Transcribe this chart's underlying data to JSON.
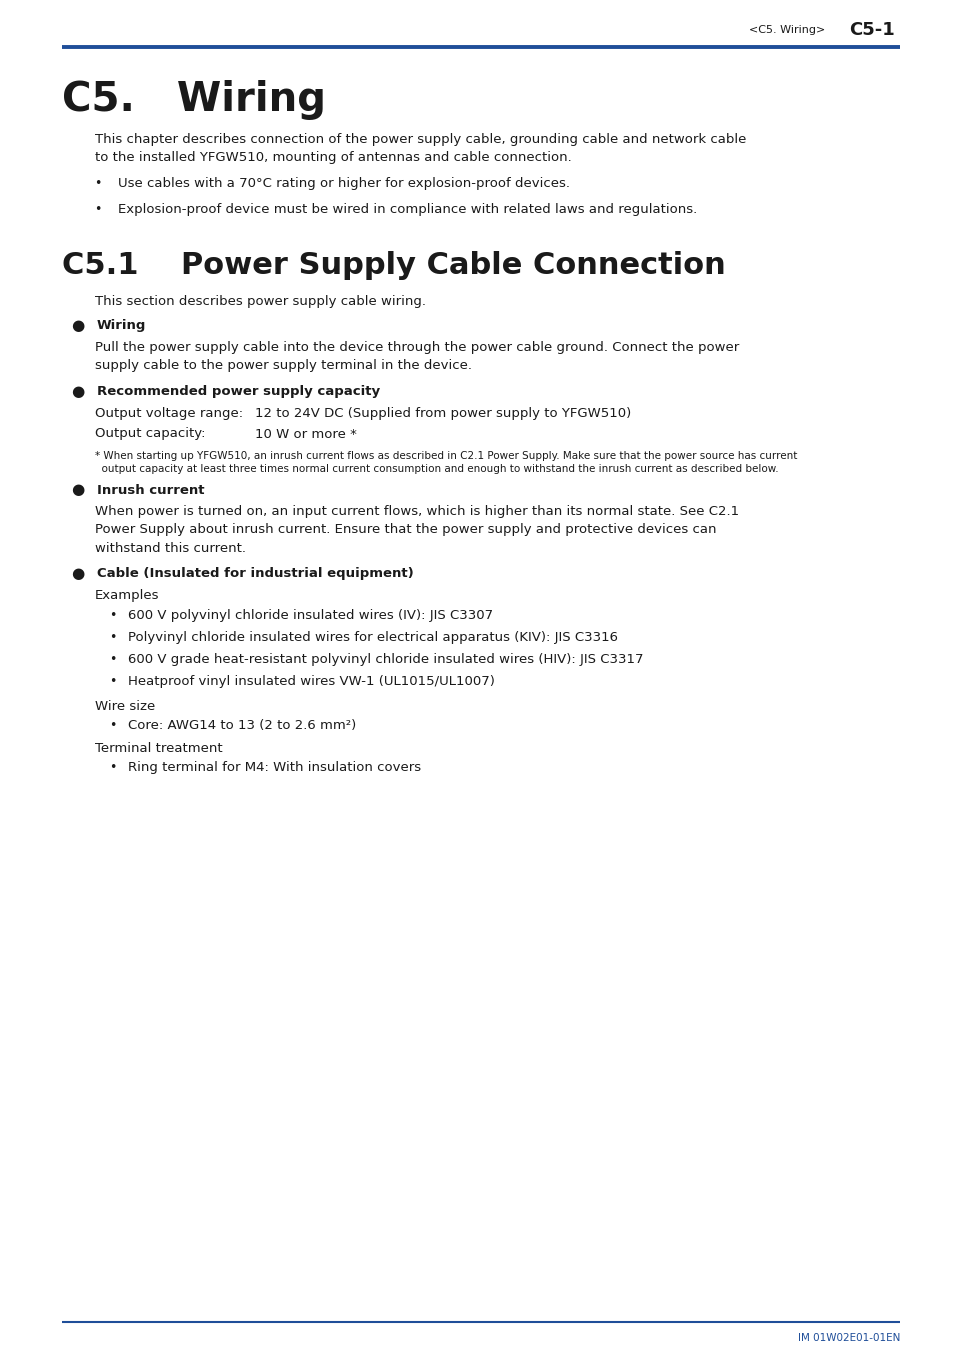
{
  "bg_color": "#ffffff",
  "header_line_color": "#1f4e99",
  "header_text_left": "<C5. Wiring>",
  "header_text_right": "C5-1",
  "footer_text": "IM 01W02E01-01EN",
  "footer_line_color": "#1f4e99",
  "blue_color": "#1f4e99",
  "body_color": "#1a1a1a",
  "title_h1": "C5.   Wiring",
  "title_h2": "C5.1    Power Supply Cable Connection",
  "content": {
    "intro_lines": [
      "This chapter describes connection of the power supply cable, grounding cable and network cable",
      "to the installed YFGW510, mounting of antennas and cable connection."
    ],
    "bullets_1": [
      "Use cables with a 70°C rating or higher for explosion-proof devices.",
      "Explosion-proof device must be wired in compliance with related laws and regulations."
    ],
    "section_intro": "This section describes power supply cable wiring.",
    "subsections": [
      {
        "title": "Wiring",
        "body_lines": [
          "Pull the power supply cable into the device through the power cable ground. Connect the power",
          "supply cable to the power supply terminal in the device."
        ]
      },
      {
        "title": "Recommended power supply capacity",
        "rows": [
          [
            "Output voltage range:",
            "12 to 24V DC (Supplied from power supply to YFGW510)"
          ],
          [
            "Output capacity:",
            "10 W or more *"
          ]
        ],
        "footnote_lines": [
          "* When starting up YFGW510, an inrush current flows as described in C2.1 Power Supply. Make sure that the power source has current",
          "  output capacity at least three times normal current consumption and enough to withstand the inrush current as described below."
        ]
      },
      {
        "title": "Inrush current",
        "body_lines": [
          "When power is turned on, an input current flows, which is higher than its normal state. See C2.1",
          "Power Supply about inrush current. Ensure that the power supply and protective devices can",
          "withstand this current."
        ]
      },
      {
        "title": "Cable (Insulated for industrial equipment)",
        "examples_label": "Examples",
        "examples": [
          "600 V polyvinyl chloride insulated wires (IV): JIS C3307",
          "Polyvinyl chloride insulated wires for electrical apparatus (KIV): JIS C3316",
          "600 V grade heat-resistant polyvinyl chloride insulated wires (HIV): JIS C3317",
          "Heatproof vinyl insulated wires VW-1 (UL1015/UL1007)"
        ],
        "wire_size_label": "Wire size",
        "wire_size": [
          "Core: AWG14 to 13 (2 to 2.6 mm²)"
        ],
        "terminal_label": "Terminal treatment",
        "terminal": [
          "Ring terminal for M4: With insulation covers"
        ]
      }
    ]
  }
}
